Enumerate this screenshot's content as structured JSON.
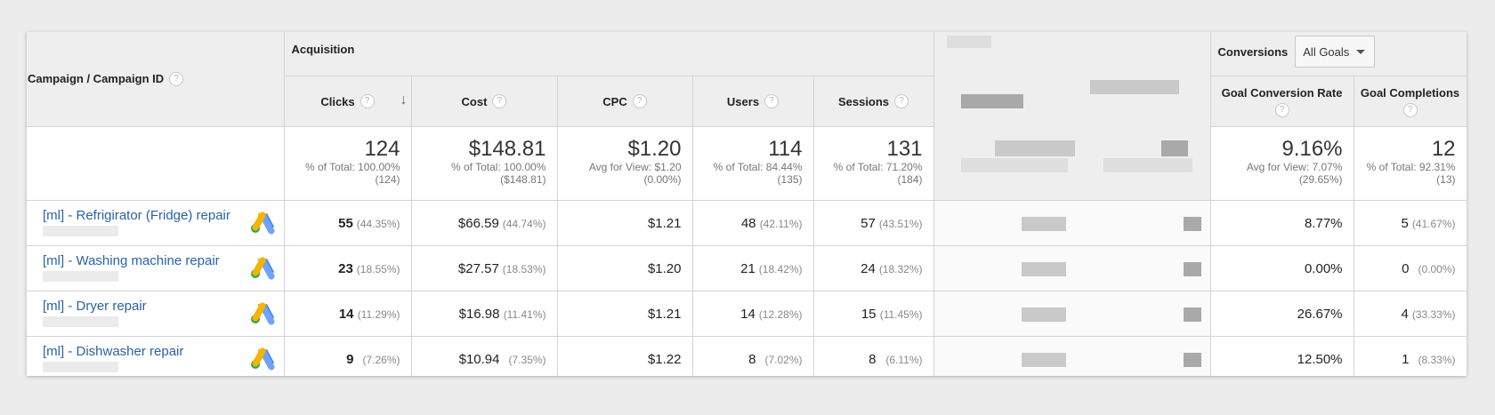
{
  "header": {
    "campaign_col": "Campaign / Campaign ID",
    "acquisition_group": "Acquisition",
    "conversions_group": "Conversions",
    "goal_select": "All Goals",
    "help_glyph": "?",
    "sort_glyph": "↓",
    "columns": {
      "clicks": "Clicks",
      "cost": "Cost",
      "cpc": "CPC",
      "users": "Users",
      "sessions": "Sessions",
      "gcr": "Goal Conversion Rate",
      "gc": "Goal Completions"
    }
  },
  "totals": {
    "clicks": {
      "value": "124",
      "line1": "% of Total: 100.00%",
      "line2": "(124)"
    },
    "cost": {
      "value": "$148.81",
      "line1": "% of Total: 100.00%",
      "line2": "($148.81)"
    },
    "cpc": {
      "value": "$1.20",
      "line1": "Avg for View: $1.20",
      "line2": "(0.00%)"
    },
    "users": {
      "value": "114",
      "line1": "% of Total: 84.44%",
      "line2": "(135)"
    },
    "sessions": {
      "value": "131",
      "line1": "% of Total: 71.20%",
      "line2": "(184)"
    },
    "gcr": {
      "value": "9.16%",
      "line1": "Avg for View: 7.07%",
      "line2": "(29.65%)"
    },
    "gc": {
      "value": "12",
      "line1": "% of Total: 92.31%",
      "line2": "(13)"
    }
  },
  "rows": [
    {
      "campaign": "[ml] - Refrigirator (Fridge) repair",
      "clicks": "55",
      "clicks_pct": "(44.35%)",
      "cost": "$66.59",
      "cost_pct": "(44.74%)",
      "cpc": "$1.21",
      "users": "48",
      "users_pct": "(42.11%)",
      "sessions": "57",
      "sessions_pct": "(43.51%)",
      "gcr": "8.77%",
      "gc": "5",
      "gc_pct": "(41.67%)"
    },
    {
      "campaign": "[ml] - Washing machine repair",
      "clicks": "23",
      "clicks_pct": "(18.55%)",
      "cost": "$27.57",
      "cost_pct": "(18.53%)",
      "cpc": "$1.20",
      "users": "21",
      "users_pct": "(18.42%)",
      "sessions": "24",
      "sessions_pct": "(18.32%)",
      "gcr": "0.00%",
      "gc": "0",
      "gc_pct": "(0.00%)"
    },
    {
      "campaign": "[ml] - Dryer repair",
      "clicks": "14",
      "clicks_pct": "(11.29%)",
      "cost": "$16.98",
      "cost_pct": "(11.41%)",
      "cpc": "$1.21",
      "users": "14",
      "users_pct": "(12.28%)",
      "sessions": "15",
      "sessions_pct": "(11.45%)",
      "gcr": "26.67%",
      "gc": "4",
      "gc_pct": "(33.33%)"
    },
    {
      "campaign": "[ml] - Dishwasher repair",
      "clicks": "9",
      "clicks_pct": "(7.26%)",
      "cost": "$10.94",
      "cost_pct": "(7.35%)",
      "cpc": "$1.22",
      "users": "8",
      "users_pct": "(7.02%)",
      "sessions": "8",
      "sessions_pct": "(6.11%)",
      "gcr": "12.50%",
      "gc": "1",
      "gc_pct": "(8.33%)"
    }
  ],
  "icons": {
    "google_ads": "google-ads-icon",
    "help": "help-icon",
    "sort": "sort-desc-icon"
  },
  "colors": {
    "link": "#2a62a4",
    "header_bg": "#eeeeee",
    "ads_yellow": "#f4b400",
    "ads_blue": "#4285f4",
    "ads_green": "#34a853"
  }
}
